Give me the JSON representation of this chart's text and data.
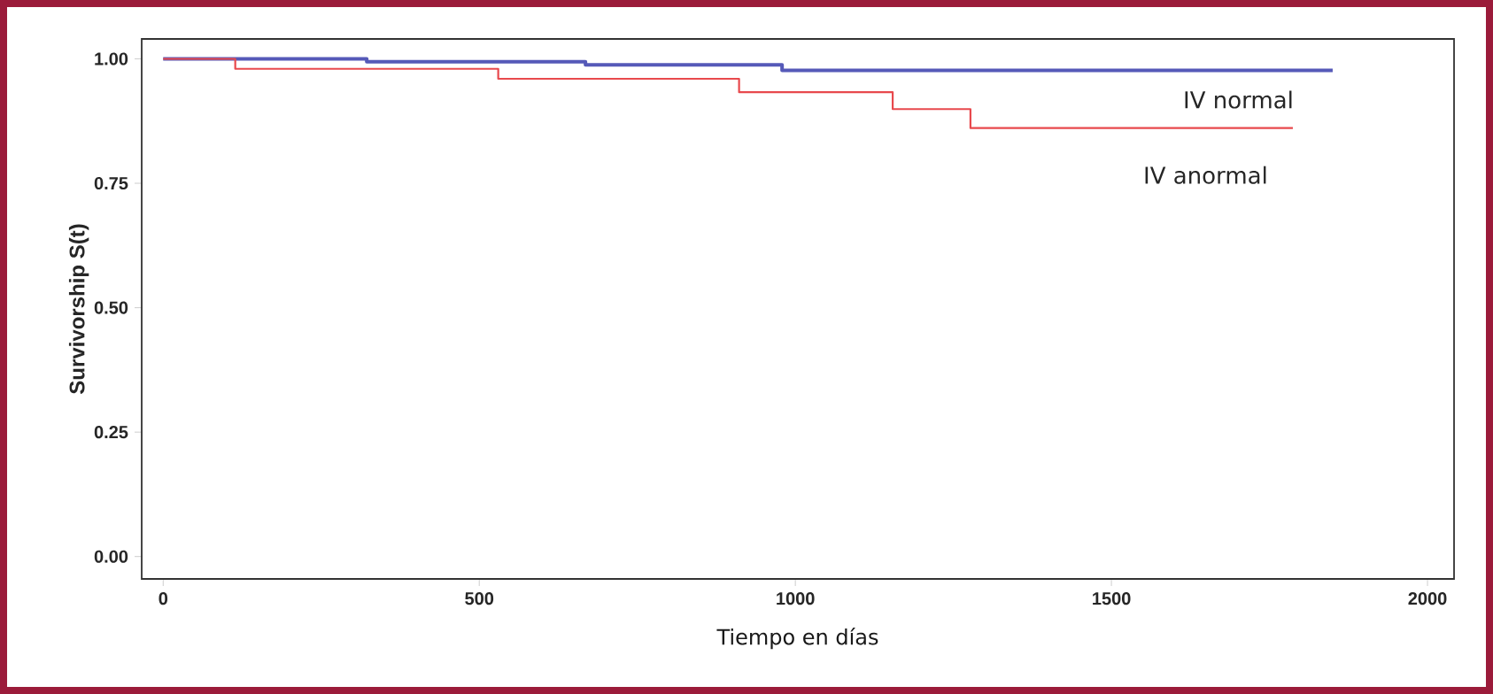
{
  "chart_data": {
    "type": "step",
    "xlabel": "Tiempo en días",
    "ylabel": "Survivorship S(t)",
    "xlim": [
      -34,
      2042
    ],
    "ylim": [
      -0.045,
      1.04
    ],
    "xticks": [
      0,
      500,
      1000,
      1500,
      2000
    ],
    "yticks": [
      {
        "value": 0,
        "label": "0.00"
      },
      {
        "value": 0.25,
        "label": "0.25"
      },
      {
        "value": 0.5,
        "label": "0.50"
      },
      {
        "value": 0.75,
        "label": "0.75"
      },
      {
        "value": 1,
        "label": "1.00"
      }
    ],
    "grid": false,
    "legend": false,
    "marker": "none",
    "line_style": "solid",
    "series": [
      {
        "name": "IV normal",
        "color": "#5559b8",
        "x": [
          0,
          322,
          668,
          979,
          1850
        ],
        "values": [
          1,
          0.994,
          0.988,
          0.977,
          0.977
        ]
      },
      {
        "name": "IV anormal",
        "color": "#e8494d",
        "x": [
          0,
          114,
          530,
          911,
          1154,
          1277,
          1787
        ],
        "values": [
          1,
          0.98,
          0.96,
          0.933,
          0.899,
          0.861,
          0.861
        ]
      }
    ]
  }
}
